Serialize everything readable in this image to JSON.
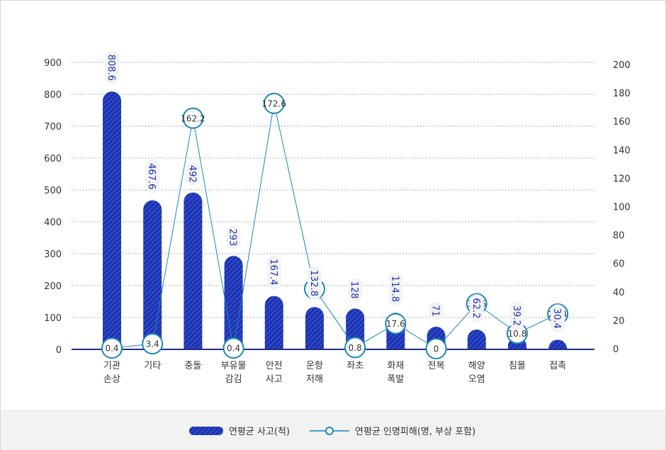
{
  "chart_data": {
    "type": "bar",
    "categories": [
      [
        "기관",
        "손상"
      ],
      [
        "기타"
      ],
      [
        "충돌"
      ],
      [
        "부유물",
        "감김"
      ],
      [
        "안전",
        "사고"
      ],
      [
        "운항",
        "저해"
      ],
      [
        "좌초"
      ],
      [
        "화재",
        "폭발"
      ],
      [
        "전복"
      ],
      [
        "해양",
        "오염"
      ],
      [
        "침몰"
      ],
      [
        "접촉"
      ]
    ],
    "series": [
      {
        "name": "연평균 사고(척)",
        "type": "bar",
        "axis": "left",
        "values": [
          808.6,
          467.6,
          492,
          293,
          167.4,
          132.8,
          128,
          114.8,
          71,
          62.2,
          39.2,
          30.4
        ],
        "color": "#1a2fb0"
      },
      {
        "name": "연평균 인명피해(명, 부상 포함)",
        "type": "line",
        "axis": "right",
        "values": [
          0.4,
          3.4,
          162.2,
          0.4,
          172.6,
          42,
          0.8,
          17.6,
          0,
          31.6,
          10.8,
          24.4
        ],
        "color": "#1a86b8"
      }
    ],
    "y_left": {
      "min": 0,
      "max": 900,
      "ticks": [
        0,
        100,
        200,
        300,
        400,
        500,
        600,
        700,
        800,
        900
      ]
    },
    "y_right": {
      "min": 0,
      "max": 200,
      "ticks": [
        0,
        20,
        40,
        60,
        80,
        100,
        120,
        140,
        160,
        180,
        200
      ]
    },
    "grid": "dotted horizontal",
    "legend_position": "bottom"
  }
}
